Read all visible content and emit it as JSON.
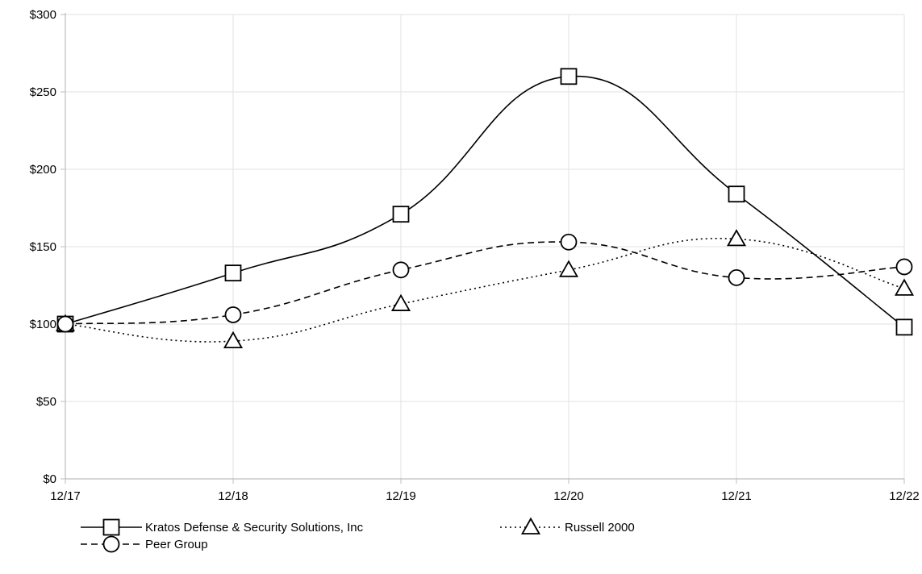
{
  "chart_data": {
    "type": "line",
    "title": "",
    "xlabel": "",
    "ylabel": "",
    "categories": [
      "12/17",
      "12/18",
      "12/19",
      "12/20",
      "12/21",
      "12/22"
    ],
    "y_ticks": [
      "$0",
      "$50",
      "$100",
      "$150",
      "$200",
      "$250",
      "$300"
    ],
    "ylim": [
      0,
      300
    ],
    "grid": true,
    "legend_position": "bottom-left",
    "series": [
      {
        "name": "Kratos Defense & Security Solutions, Inc",
        "marker": "square",
        "line_style": "solid",
        "values": [
          100,
          133,
          171,
          260,
          184,
          98
        ]
      },
      {
        "name": "Russell 2000",
        "marker": "triangle",
        "line_style": "dotted",
        "values": [
          100,
          89,
          113,
          135,
          155,
          123
        ]
      },
      {
        "name": "Peer Group",
        "marker": "circle",
        "line_style": "dashed",
        "values": [
          100,
          106,
          135,
          153,
          130,
          137
        ]
      }
    ]
  },
  "colors": {
    "line": "#000000",
    "grid": "#e6e6e6",
    "axis": "#bdbdbd"
  }
}
